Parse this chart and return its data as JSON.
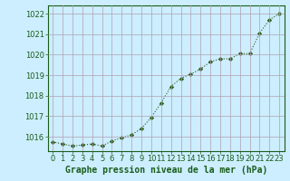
{
  "x": [
    0,
    1,
    2,
    3,
    4,
    5,
    6,
    7,
    8,
    9,
    10,
    11,
    12,
    13,
    14,
    15,
    16,
    17,
    18,
    19,
    20,
    21,
    22,
    23
  ],
  "y": [
    1015.75,
    1015.65,
    1015.55,
    1015.6,
    1015.65,
    1015.55,
    1015.8,
    1015.95,
    1016.1,
    1016.4,
    1016.95,
    1017.65,
    1018.45,
    1018.85,
    1019.05,
    1019.3,
    1019.65,
    1019.8,
    1019.8,
    1020.05,
    1020.05,
    1021.05,
    1021.7,
    1022.0
  ],
  "line_color": "#2d5a1b",
  "marker": "D",
  "marker_size": 2.2,
  "bg_color": "#cceeff",
  "grid_color": "#b0a0b0",
  "ylim": [
    1015.3,
    1022.4
  ],
  "yticks": [
    1016,
    1017,
    1018,
    1019,
    1020,
    1021,
    1022
  ],
  "xlabel": "Graphe pression niveau de la mer (hPa)",
  "title_color": "#1a5c1a",
  "xlabel_fontsize": 7.0,
  "tick_fontsize": 6.0,
  "tick_color": "#1a5c1a"
}
